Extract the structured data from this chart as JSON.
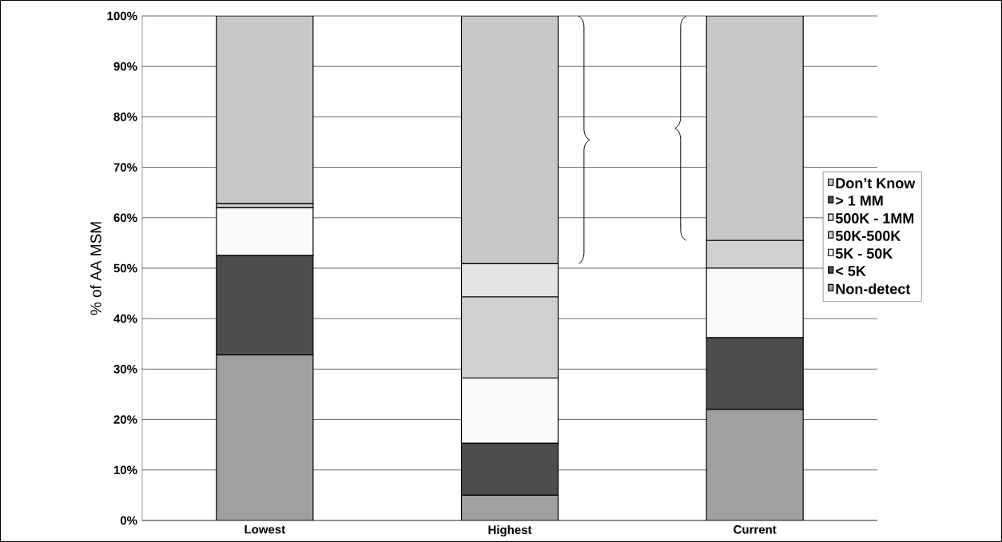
{
  "chart_data": {
    "type": "bar",
    "stacked": true,
    "ylabel": "% of AA MSM",
    "categories": [
      "Lowest",
      "Highest",
      "Current"
    ],
    "series": [
      {
        "name": "Non-detect",
        "color": "#a0a0a0",
        "values": [
          32.8,
          5.0,
          22.0
        ]
      },
      {
        "name": "< 5K",
        "color": "#4d4d4d",
        "values": [
          19.7,
          10.3,
          14.2
        ]
      },
      {
        "name": "5K - 50K",
        "color": "#fafafa",
        "values": [
          9.5,
          12.9,
          13.8
        ]
      },
      {
        "name": "50K-500K",
        "color": "#d0d0d0",
        "values": [
          0.8,
          16.1,
          5.5
        ]
      },
      {
        "name": "500K - 1MM",
        "color": "#e4e4e4",
        "values": [
          0,
          6.6,
          0
        ]
      },
      {
        "name": "> 1 MM",
        "color": "#4d4d4d",
        "values": [
          0,
          0,
          0
        ]
      },
      {
        "name": "Don’t Know",
        "color": "#c8c8c8",
        "values": [
          37.2,
          49.1,
          44.5
        ]
      }
    ],
    "ylim": [
      0,
      100
    ],
    "yticks": [
      {
        "value": 0,
        "label": "0%"
      },
      {
        "value": 10,
        "label": "10%"
      },
      {
        "value": 20,
        "label": "20%"
      },
      {
        "value": 30,
        "label": "30%"
      },
      {
        "value": 40,
        "label": "40%"
      },
      {
        "value": 50,
        "label": "50%"
      },
      {
        "value": 60,
        "label": "60%"
      },
      {
        "value": 70,
        "label": "70%"
      },
      {
        "value": 80,
        "label": "80%"
      },
      {
        "value": 90,
        "label": "90%"
      },
      {
        "value": 100,
        "label": "100%"
      }
    ],
    "grid": "y",
    "legend": "right"
  }
}
